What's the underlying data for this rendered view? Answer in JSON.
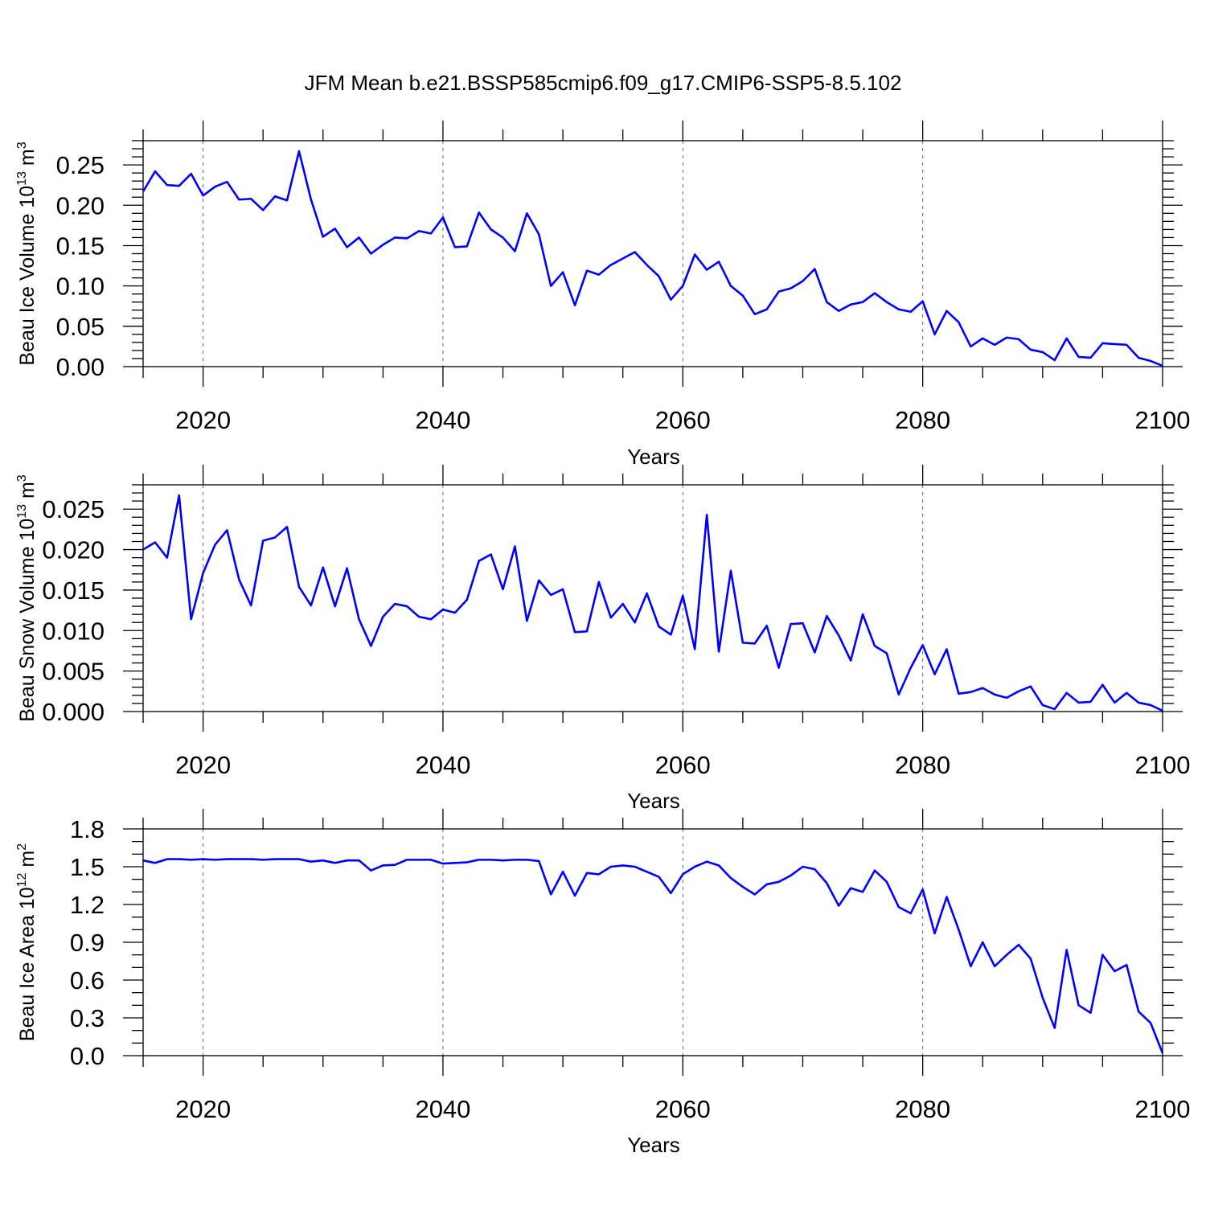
{
  "title": "JFM Mean b.e21.BSSP585cmip6.f09_g17.CMIP6-SSP5-8.5.102",
  "chart_data": [
    {
      "type": "line",
      "name": "ice-volume",
      "title": "JFM Mean b.e21.BSSP585cmip6.f09_g17.CMIP6-SSP5-8.5.102",
      "ylabel": "Beau Ice Volume 10",
      "ylabel_exp": "13",
      "ylabel_unit": " m",
      "ylabel_unit_exp": "3",
      "xlabel": "Years",
      "xlim": [
        2015,
        2100
      ],
      "ylim": [
        0,
        0.28
      ],
      "xticks": [
        2020,
        2040,
        2060,
        2080,
        2100
      ],
      "xtick_labels": [
        "2020",
        "2040",
        "2060",
        "2080",
        "2100"
      ],
      "yticks": [
        0,
        0.05,
        0.1,
        0.15,
        0.2,
        0.25
      ],
      "ytick_labels": [
        "0.00",
        "0.05",
        "0.10",
        "0.15",
        "0.20",
        "0.25"
      ],
      "y_minor_step": 0.01,
      "grid": "dashed vertical at major x ticks",
      "color": "#0000ff",
      "x_start": 2015,
      "values": [
        0.217,
        0.242,
        0.225,
        0.224,
        0.239,
        0.212,
        0.223,
        0.229,
        0.207,
        0.208,
        0.194,
        0.211,
        0.206,
        0.267,
        0.207,
        0.161,
        0.171,
        0.148,
        0.16,
        0.14,
        0.151,
        0.16,
        0.159,
        0.168,
        0.165,
        0.185,
        0.148,
        0.149,
        0.191,
        0.17,
        0.16,
        0.143,
        0.19,
        0.164,
        0.1,
        0.117,
        0.076,
        0.119,
        0.114,
        0.126,
        0.134,
        0.142,
        0.126,
        0.112,
        0.083,
        0.1,
        0.139,
        0.12,
        0.13,
        0.1,
        0.088,
        0.065,
        0.071,
        0.093,
        0.097,
        0.106,
        0.121,
        0.08,
        0.069,
        0.077,
        0.08,
        0.091,
        0.08,
        0.071,
        0.068,
        0.081,
        0.04,
        0.069,
        0.055,
        0.025,
        0.035,
        0.027,
        0.036,
        0.034,
        0.021,
        0.018,
        0.008,
        0.035,
        0.012,
        0.011,
        0.029,
        0.028,
        0.027,
        0.011,
        0.007,
        0.001
      ]
    },
    {
      "type": "line",
      "name": "snow-volume",
      "ylabel": "Beau Snow Volume 10",
      "ylabel_exp": "13",
      "ylabel_unit": " m",
      "ylabel_unit_exp": "3",
      "xlabel": "Years",
      "xlim": [
        2015,
        2100
      ],
      "ylim": [
        0,
        0.028
      ],
      "xticks": [
        2020,
        2040,
        2060,
        2080,
        2100
      ],
      "xtick_labels": [
        "2020",
        "2040",
        "2060",
        "2080",
        "2100"
      ],
      "yticks": [
        0,
        0.005,
        0.01,
        0.015,
        0.02,
        0.025
      ],
      "ytick_labels": [
        "0.000",
        "0.005",
        "0.010",
        "0.015",
        "0.020",
        "0.025"
      ],
      "y_minor_step": 0.001,
      "grid": "dashed vertical at major x ticks",
      "color": "#0000ff",
      "x_start": 2015,
      "values": [
        0.02,
        0.0209,
        0.019,
        0.0267,
        0.0114,
        0.0171,
        0.0206,
        0.0224,
        0.0163,
        0.0131,
        0.0211,
        0.0215,
        0.0228,
        0.0154,
        0.0131,
        0.0178,
        0.013,
        0.0177,
        0.0114,
        0.0081,
        0.0117,
        0.0133,
        0.013,
        0.0117,
        0.0114,
        0.0126,
        0.0122,
        0.0138,
        0.0186,
        0.0194,
        0.0151,
        0.0204,
        0.0112,
        0.0162,
        0.0144,
        0.0151,
        0.0098,
        0.0099,
        0.016,
        0.0116,
        0.0133,
        0.011,
        0.0146,
        0.0105,
        0.0095,
        0.0143,
        0.0077,
        0.0243,
        0.0074,
        0.0174,
        0.0085,
        0.0084,
        0.0106,
        0.0054,
        0.0108,
        0.0109,
        0.0073,
        0.0118,
        0.0094,
        0.0063,
        0.012,
        0.0081,
        0.0072,
        0.0021,
        0.0054,
        0.0082,
        0.0046,
        0.0077,
        0.0022,
        0.0024,
        0.0029,
        0.0021,
        0.0017,
        0.0025,
        0.0031,
        0.0008,
        0.0003,
        0.0023,
        0.0011,
        0.0012,
        0.0033,
        0.0011,
        0.0023,
        0.0011,
        0.0008,
        0.0001
      ]
    },
    {
      "type": "line",
      "name": "ice-area",
      "ylabel": "Beau Ice Area 10",
      "ylabel_exp": "12",
      "ylabel_unit": " m",
      "ylabel_unit_exp": "2",
      "xlabel": "Years",
      "xlim": [
        2015,
        2100
      ],
      "ylim": [
        0,
        1.8
      ],
      "xticks": [
        2020,
        2040,
        2060,
        2080,
        2100
      ],
      "xtick_labels": [
        "2020",
        "2040",
        "2060",
        "2080",
        "2100"
      ],
      "yticks": [
        0,
        0.3,
        0.6,
        0.9,
        1.2,
        1.5,
        1.8
      ],
      "ytick_labels": [
        "0.0",
        "0.3",
        "0.6",
        "0.9",
        "1.2",
        "1.5",
        "1.8"
      ],
      "y_minor_step": 0.1,
      "grid": "dashed vertical at major x ticks",
      "color": "#0000ff",
      "x_start": 2015,
      "values": [
        1.55,
        1.53,
        1.56,
        1.56,
        1.555,
        1.56,
        1.555,
        1.56,
        1.56,
        1.56,
        1.555,
        1.56,
        1.56,
        1.56,
        1.54,
        1.55,
        1.53,
        1.55,
        1.55,
        1.47,
        1.51,
        1.515,
        1.555,
        1.555,
        1.555,
        1.525,
        1.53,
        1.535,
        1.555,
        1.555,
        1.55,
        1.555,
        1.555,
        1.545,
        1.28,
        1.46,
        1.27,
        1.45,
        1.44,
        1.5,
        1.51,
        1.5,
        1.46,
        1.42,
        1.29,
        1.44,
        1.5,
        1.54,
        1.51,
        1.41,
        1.34,
        1.28,
        1.36,
        1.38,
        1.43,
        1.5,
        1.48,
        1.37,
        1.19,
        1.33,
        1.3,
        1.47,
        1.38,
        1.18,
        1.13,
        1.32,
        0.97,
        1.26,
        1.0,
        0.71,
        0.9,
        0.71,
        0.8,
        0.88,
        0.77,
        0.46,
        0.22,
        0.84,
        0.4,
        0.34,
        0.8,
        0.67,
        0.72,
        0.35,
        0.26,
        0.02
      ]
    }
  ]
}
